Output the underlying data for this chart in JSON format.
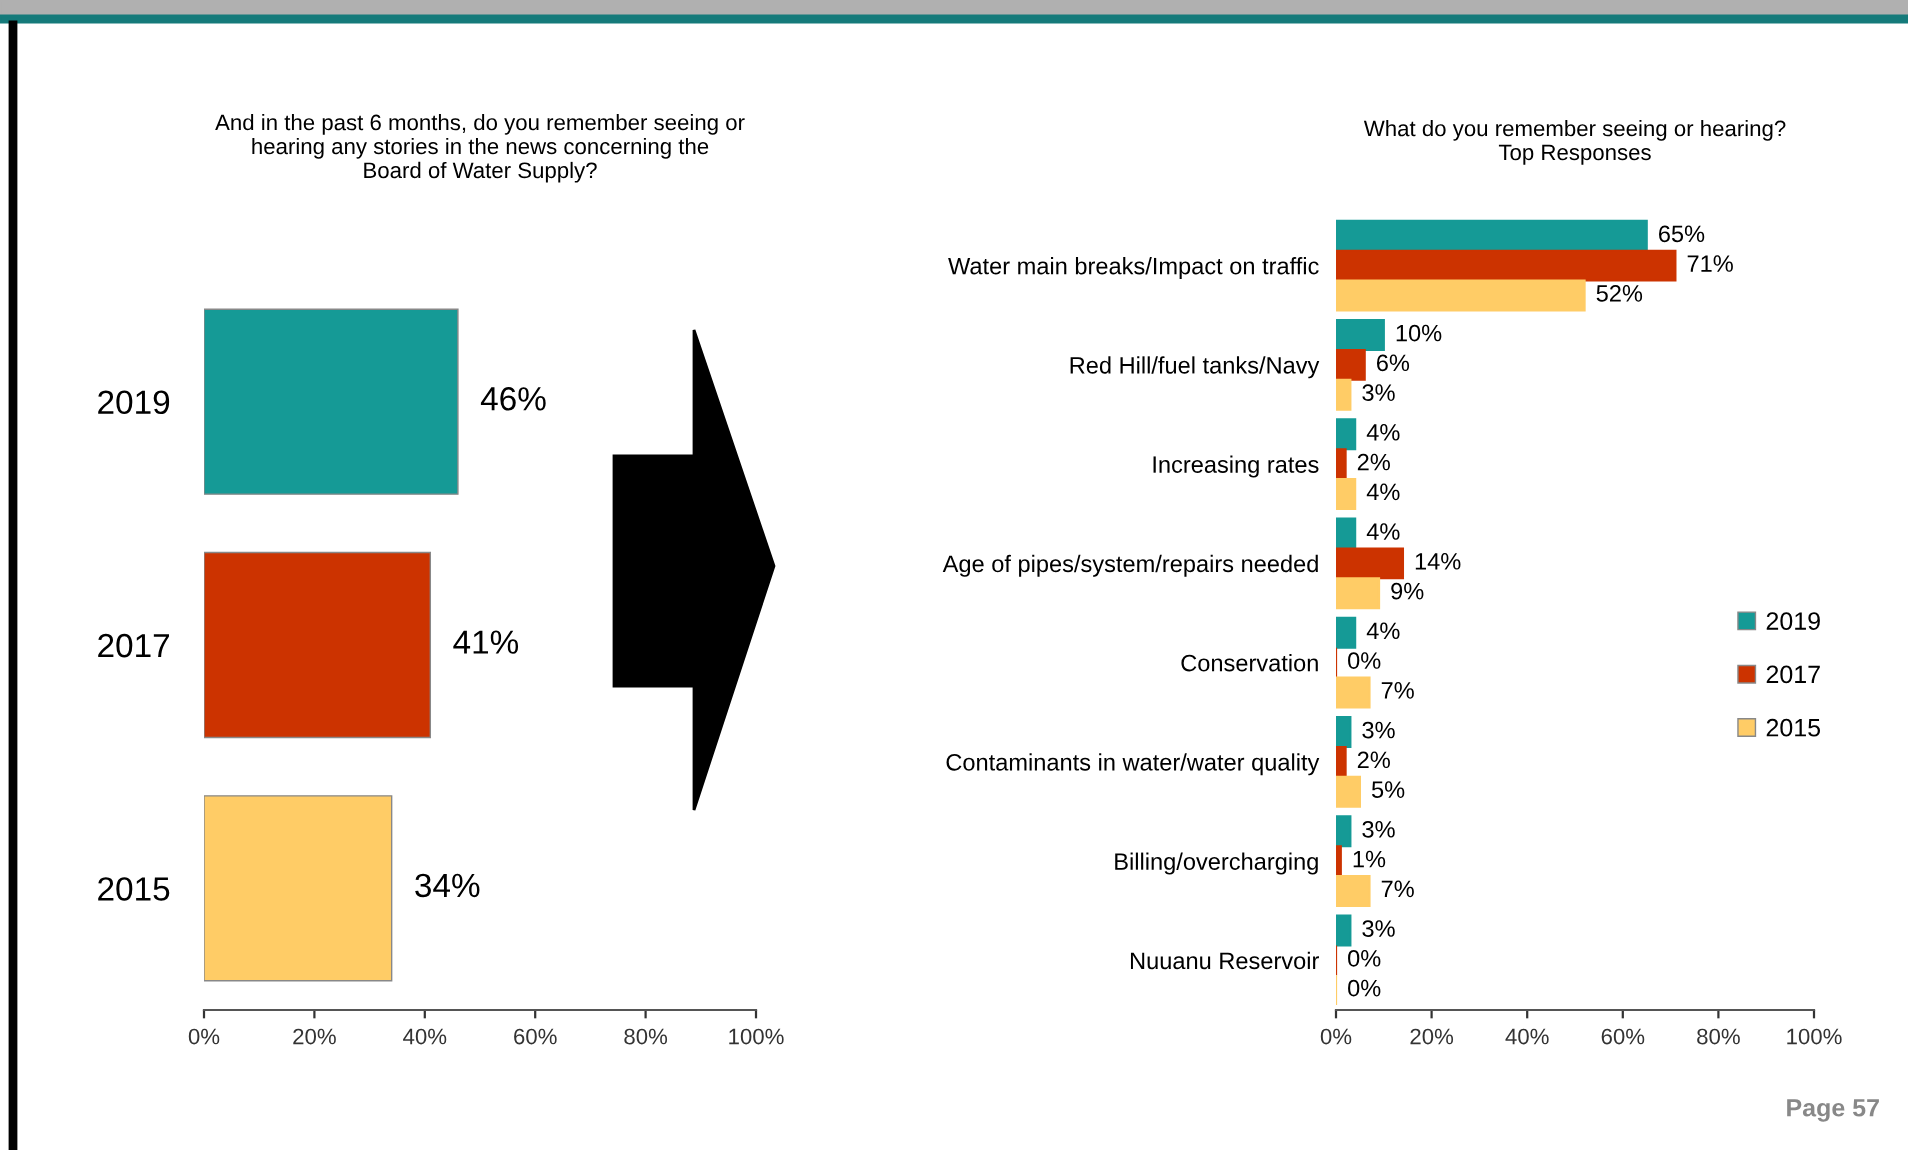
{
  "chart_data": [
    {
      "type": "bar",
      "orientation": "horizontal",
      "title": "And in the past 6 months, do you remember seeing or\nhearing any stories in the news concerning the\nBoard of Water Supply?",
      "categories": [
        "2019",
        "2017",
        "2015"
      ],
      "values": [
        46,
        41,
        34
      ],
      "colors": [
        "#159a96",
        "#cc3300",
        "#ffcc66"
      ],
      "value_labels": [
        "46%",
        "41%",
        "34%"
      ],
      "xlim": [
        0,
        100
      ],
      "xticks": [
        {
          "value": 0,
          "label": "0%"
        },
        {
          "value": 20,
          "label": "20%"
        },
        {
          "value": 40,
          "label": "40%"
        },
        {
          "value": 60,
          "label": "60%"
        },
        {
          "value": 80,
          "label": "80%"
        },
        {
          "value": 100,
          "label": "100%"
        }
      ],
      "grid": false,
      "legend": false
    },
    {
      "type": "bar",
      "orientation": "horizontal",
      "title": "What do you remember seeing or hearing?\nTop Responses",
      "categories": [
        "Water main breaks/Impact on traffic",
        "Red Hill/fuel tanks/Navy",
        "Increasing rates",
        "Age of pipes/system/repairs needed",
        "Conservation",
        "Contaminants in water/water quality",
        "Billing/overcharging",
        "Nuuanu Reservoir"
      ],
      "series": [
        {
          "name": "2019",
          "color": "#159a96",
          "values": [
            65,
            10,
            4,
            4,
            4,
            3,
            3,
            3
          ],
          "value_labels": [
            "65%",
            "10%",
            "4%",
            "4%",
            "4%",
            "3%",
            "3%",
            "3%"
          ]
        },
        {
          "name": "2017",
          "color": "#cc3300",
          "values": [
            71,
            6,
            2,
            14,
            0,
            2,
            1,
            0
          ],
          "value_labels": [
            "71%",
            "6%",
            "2%",
            "14%",
            "0%",
            "2%",
            "1%",
            "0%"
          ]
        },
        {
          "name": "2015",
          "color": "#ffcc66",
          "values": [
            52,
            3,
            4,
            9,
            7,
            5,
            7,
            0
          ],
          "value_labels": [
            "52%",
            "3%",
            "4%",
            "9%",
            "7%",
            "5%",
            "7%",
            "0%"
          ]
        }
      ],
      "xlim": [
        0,
        100
      ],
      "xticks": [
        {
          "value": 0,
          "label": "0%"
        },
        {
          "value": 20,
          "label": "20%"
        },
        {
          "value": 40,
          "label": "40%"
        },
        {
          "value": 60,
          "label": "60%"
        },
        {
          "value": 80,
          "label": "80%"
        },
        {
          "value": 100,
          "label": "100%"
        }
      ],
      "grid": false,
      "legend": "right",
      "annotations": [
        "Page 57"
      ]
    }
  ]
}
